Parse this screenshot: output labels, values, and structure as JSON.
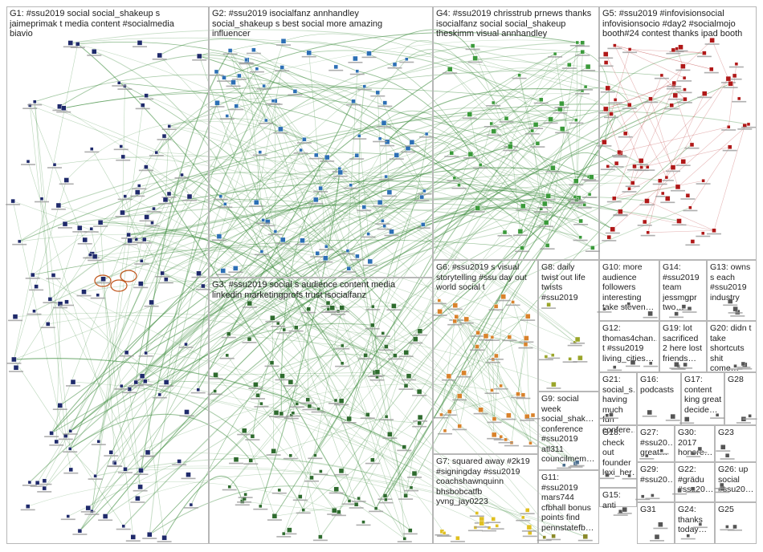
{
  "groups": [
    {
      "id": "G1",
      "label": "G1: #ssu2019 social social_shakeup s\njaimeprimak t media content #socialmedia\nbiavio"
    },
    {
      "id": "G2",
      "label": "G2: #ssu2019 isocialfanz annhandley\nsocial_shakeup s best social more amazing\ninfluencer"
    },
    {
      "id": "G4",
      "label": "G4: #ssu2019 chrisstrub prnews thanks\nisocialfanz social social_shakeup\ntheskimm visual annhandley"
    },
    {
      "id": "G5",
      "label": "G5: #ssu2019 #infovisionsocial\ninfovisionsocio #day2 #socialmojo\nbooth#24 contest thanks ipad booth"
    },
    {
      "id": "G3",
      "label": "G3: #ssu2019 social s audience content media\nlinkedin marketingprofs trust isocialfanz"
    },
    {
      "id": "G6",
      "label": "G6: #ssu2019 s visual\nstorytelling #ssu day out\nworld social t"
    },
    {
      "id": "G8",
      "label": "G8: daily\ntwist out life\ntwists\n#ssu2019"
    },
    {
      "id": "G10",
      "label": "G10: more\naudience\nfollowers\ninteresting\ntake steven…"
    },
    {
      "id": "G14",
      "label": "G14:\n#ssu2019\nteam\njessmgpr\ntwo…"
    },
    {
      "id": "G13",
      "label": "G13: owns\ns each\n#ssu2019\nindustry"
    },
    {
      "id": "G12",
      "label": "G12:\nthomas4chan…\nt #ssu2019\nliving_cities…"
    },
    {
      "id": "G19",
      "label": "G19: lot\nsacrificed\n2 here lost\nfriends…"
    },
    {
      "id": "G20",
      "label": "G20: didn t\ntake\nshortcuts\nshit come…"
    },
    {
      "id": "G9",
      "label": "G9: social\nweek\nsocial_shak…\nconference\n#ssu2019\natl311\ncouncilmem…"
    },
    {
      "id": "G21",
      "label": "G21:\nsocial_s…\nhaving\nmuch fun\nconfere…"
    },
    {
      "id": "G16",
      "label": "G16:\npodcasts"
    },
    {
      "id": "G17",
      "label": "G17:\ncontent\nking great\ndecide…"
    },
    {
      "id": "G28",
      "label": "G28"
    },
    {
      "id": "G18",
      "label": "G18:\ncheck\nout\nfounder\nlexi_her…"
    },
    {
      "id": "G27",
      "label": "G27:\n#ssu20…\ngreat…"
    },
    {
      "id": "G30",
      "label": "G30:\n2017\nhonore…"
    },
    {
      "id": "G23",
      "label": "G23"
    },
    {
      "id": "G7",
      "label": "G7: squared away #2k19\n#signingday #ssu2019\ncoachshawnquinn\nbhsbobcatfb\nyvng_jay0223"
    },
    {
      "id": "G11",
      "label": "G11:\n#ssu2019\nmars744\ncfbhall bonus\npoints find\npennstatefb…"
    },
    {
      "id": "G29",
      "label": "G29:\n#ssu20…"
    },
    {
      "id": "G22",
      "label": "G22:\n#grädu\n#ssu20…"
    },
    {
      "id": "G26",
      "label": "G26: up\nsocial\n#ssu20…"
    },
    {
      "id": "G15",
      "label": "G15: anti"
    },
    {
      "id": "G31",
      "label": "G31"
    },
    {
      "id": "G24",
      "label": "G24:\nthanks\ntoday…"
    },
    {
      "id": "G25",
      "label": "G25"
    }
  ],
  "colors": {
    "G1": "#1f2a6b",
    "G2": "#2c6fb5",
    "G3": "#2e6b2e",
    "G4": "#3a9a3a",
    "G5": "#b01818",
    "G6": "#d9822b",
    "G7": "#e0c020",
    "G8": "#9aa52a",
    "G9": "#4b6e8e",
    "G11": "#8a8a2a",
    "edge": "#3a8a3a",
    "loop": "#c0541a"
  }
}
